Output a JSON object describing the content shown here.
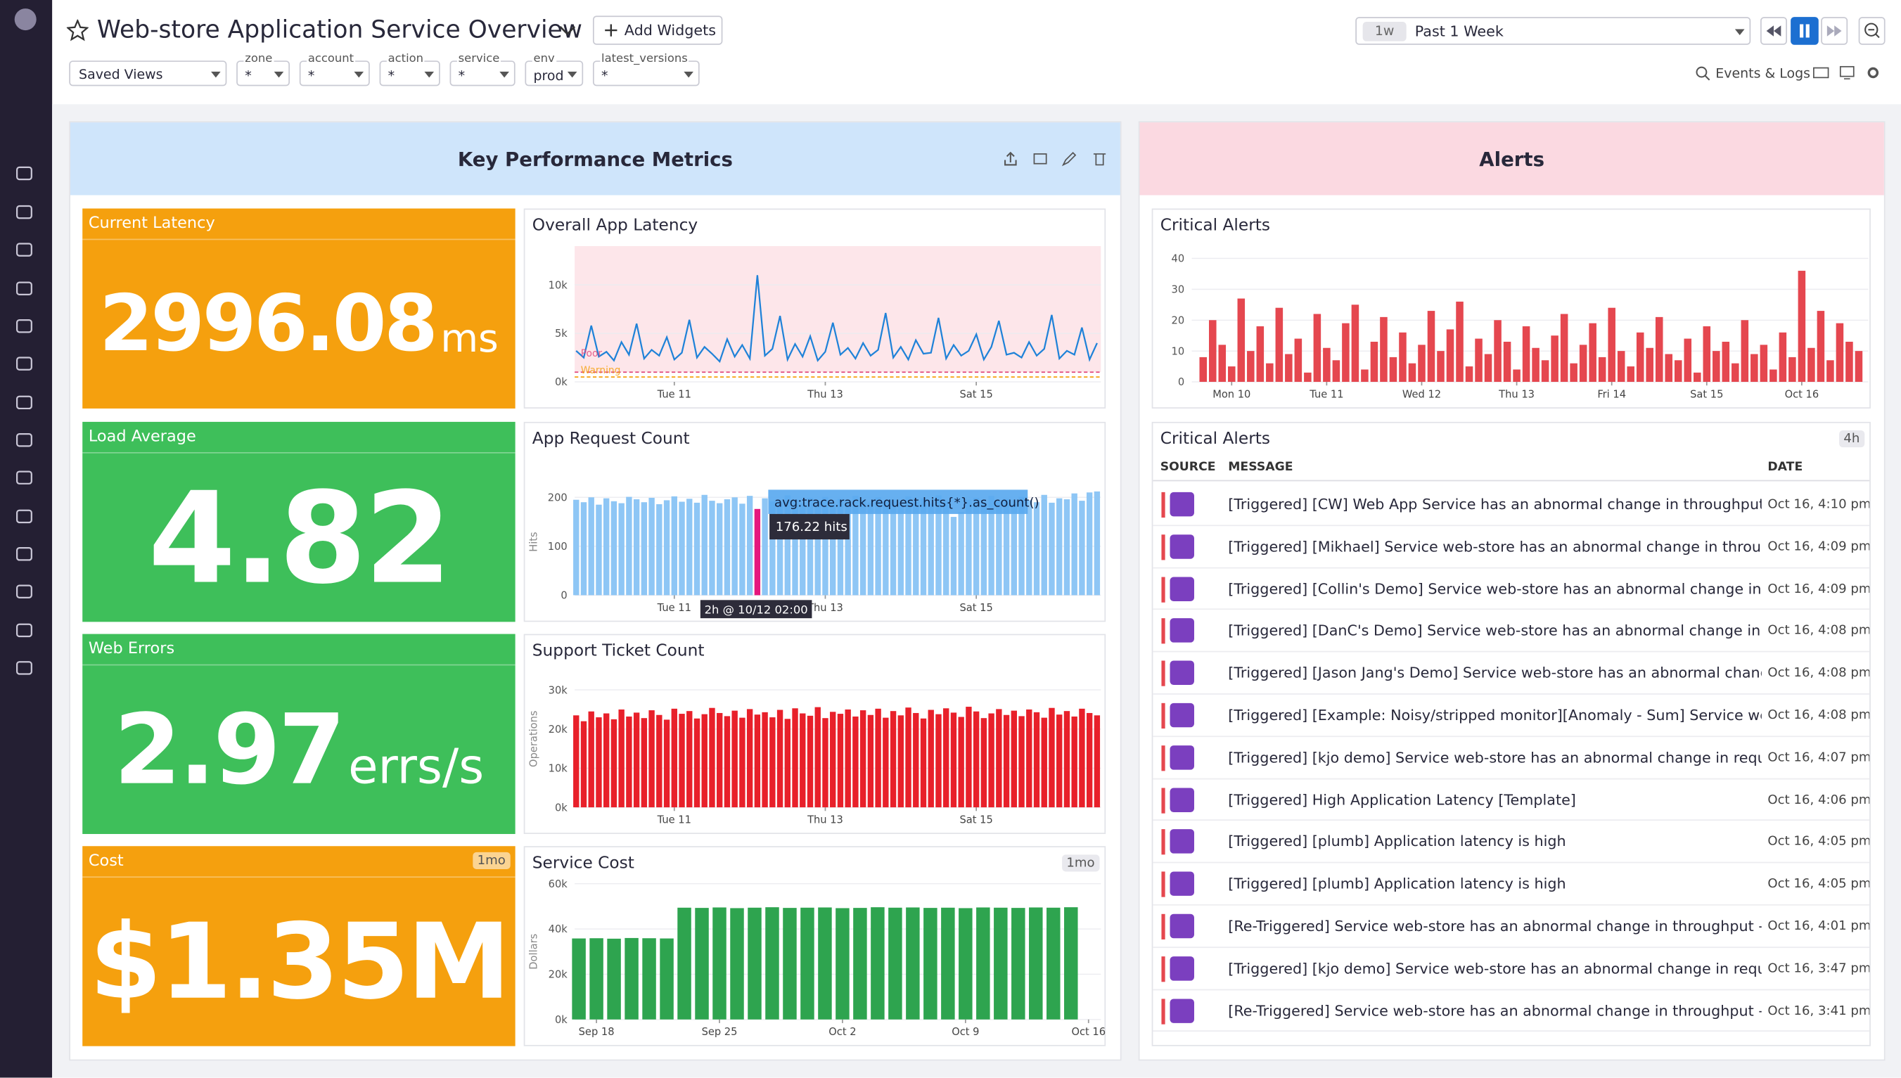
{
  "header": {
    "title": "Web-store Application Service Overview",
    "add_widgets": "Add Widgets",
    "time_shortcut": "1w",
    "time_range": "Past 1 Week",
    "events_logs": "Events & Logs"
  },
  "filters": {
    "saved_views": "Saved Views",
    "variables": [
      {
        "name": "zone",
        "value": "*"
      },
      {
        "name": "account",
        "value": "*"
      },
      {
        "name": "action",
        "value": "*"
      },
      {
        "name": "service",
        "value": "*"
      },
      {
        "name": "env",
        "value": "prod"
      },
      {
        "name": "latest_versions",
        "value": "*"
      }
    ]
  },
  "groups": [
    {
      "title": "Key Performance Metrics"
    },
    {
      "title": "Alerts"
    }
  ],
  "kpis": [
    {
      "title": "Current Latency",
      "value": "2996.08",
      "unit": "ms",
      "color": "#f5a00e"
    },
    {
      "title": "Load Average",
      "value": "4.82",
      "color": "#3ebf5a"
    },
    {
      "title": "Web Errors",
      "value": "2.97",
      "unit": "errs/s",
      "color": "#3ebf5a"
    },
    {
      "title": "Cost",
      "badge": "1mo",
      "value": "$1.35M",
      "color": "#f5a00e"
    }
  ],
  "chart_data": [
    {
      "type": "line",
      "title": "Overall App Latency",
      "xlim": [
        -0.32,
        6.65
      ],
      "ylim": [
        0,
        14000
      ],
      "grid": true,
      "xticks": [
        {
          "value": 1,
          "label": "Tue 11"
        },
        {
          "value": 3,
          "label": "Thu 13"
        },
        {
          "value": 5,
          "label": "Sat 15"
        }
      ],
      "yticks": [
        {
          "value": 0,
          "label": "0k"
        },
        {
          "value": 5000,
          "label": "5k"
        },
        {
          "value": 10000,
          "label": "10k"
        }
      ],
      "markers": [
        {
          "label": "Poor",
          "value": 1000,
          "color": "#e0467c"
        },
        {
          "label": "Warning",
          "value": 500,
          "color": "#f5a00e"
        }
      ],
      "x": [
        -0.3,
        -0.2,
        -0.1,
        0,
        0.1,
        0.2,
        0.3,
        0.4,
        0.5,
        0.6,
        0.7,
        0.8,
        0.9,
        1,
        1.1,
        1.2,
        1.3,
        1.4,
        1.5,
        1.6,
        1.7,
        1.8,
        1.9,
        2,
        2.1,
        2.2,
        2.3,
        2.4,
        2.5,
        2.6,
        2.7,
        2.8,
        2.9,
        3,
        3.1,
        3.2,
        3.3,
        3.4,
        3.5,
        3.6,
        3.7,
        3.8,
        3.9,
        4,
        4.1,
        4.2,
        4.3,
        4.4,
        4.5,
        4.6,
        4.7,
        4.8,
        4.9,
        5,
        5.1,
        5.2,
        5.3,
        5.4,
        5.5,
        5.6,
        5.7,
        5.8,
        5.9,
        6,
        6.1,
        6.2,
        6.3,
        6.4,
        6.5,
        6.6
      ],
      "series": [
        {
          "color": "#1f82d8",
          "values": [
            3200,
            2500,
            5800,
            2600,
            3100,
            2200,
            4100,
            2800,
            6000,
            2400,
            3300,
            2700,
            4600,
            2300,
            3000,
            6400,
            2500,
            3600,
            2900,
            2100,
            4400,
            2600,
            3800,
            2400,
            11000,
            2700,
            3400,
            6800,
            2300,
            3900,
            2600,
            4700,
            2200,
            3100,
            6100,
            2800,
            3500,
            2400,
            4000,
            2700,
            3300,
            7100,
            2500,
            3600,
            2300,
            4300,
            2900,
            3000,
            6600,
            2400,
            3800,
            2700,
            3200,
            4900,
            2300,
            3600,
            6300,
            2800,
            3000,
            2500,
            4100,
            2700,
            3400,
            6900,
            2400,
            3200,
            2800,
            5600,
            2300,
            4000
          ]
        }
      ]
    },
    {
      "type": "bar",
      "title": "App Request Count",
      "ylabel": "Hits",
      "xlim": [
        -0.32,
        6.65
      ],
      "ylim": [
        0,
        218
      ],
      "grid": true,
      "xticks": [
        {
          "value": 1,
          "label": "Tue 11"
        },
        {
          "value": 3,
          "label": "Thu 13"
        },
        {
          "value": 5,
          "label": "Sat 15"
        }
      ],
      "yticks": [
        0,
        100,
        200
      ],
      "highlight": 24,
      "highlight_color": "#e5177d",
      "tooltip": {
        "query": "avg:trace.rack.request.hits{*}.as_count()",
        "value_label": "176.22 hits",
        "time": "2h @ 10/12 02:00"
      },
      "x": [
        -0.3,
        -0.2,
        -0.1,
        0,
        0.1,
        0.2,
        0.3,
        0.4,
        0.5,
        0.6,
        0.7,
        0.8,
        0.9,
        1,
        1.1,
        1.2,
        1.3,
        1.4,
        1.5,
        1.6,
        1.7,
        1.8,
        1.9,
        2,
        2.1,
        2.2,
        2.3,
        2.4,
        2.5,
        2.6,
        2.7,
        2.8,
        2.9,
        3,
        3.1,
        3.2,
        3.3,
        3.4,
        3.5,
        3.6,
        3.7,
        3.8,
        3.9,
        4,
        4.1,
        4.2,
        4.3,
        4.4,
        4.5,
        4.6,
        4.7,
        4.8,
        4.9,
        5,
        5.1,
        5.2,
        5.3,
        5.4,
        5.5,
        5.6,
        5.7,
        5.8,
        5.9,
        6,
        6.1,
        6.2,
        6.3,
        6.4,
        6.5,
        6.6
      ],
      "series": [
        {
          "color": "#8ec6f5",
          "values": [
            195,
            190,
            200,
            185,
            198,
            192,
            188,
            201,
            196,
            190,
            199,
            186,
            194,
            202,
            191,
            197,
            189,
            205,
            193,
            188,
            196,
            200,
            187,
            203,
            176.22,
            198,
            192,
            190,
            204,
            195,
            188,
            199,
            193,
            201,
            186,
            197,
            190,
            203,
            194,
            189,
            200,
            192,
            196,
            185,
            202,
            191,
            198,
            187,
            204,
            193,
            160,
            170,
            195,
            199,
            188,
            203,
            192,
            197,
            186,
            201,
            194,
            190,
            205,
            189,
            198,
            196,
            208,
            193,
            210,
            212
          ]
        }
      ]
    },
    {
      "type": "bar",
      "title": "Support Ticket Count",
      "ylabel": "Operations",
      "xlim": [
        -0.32,
        6.65
      ],
      "ylim": [
        0,
        35000
      ],
      "grid": true,
      "xticks": [
        {
          "value": 1,
          "label": "Tue 11"
        },
        {
          "value": 3,
          "label": "Thu 13"
        },
        {
          "value": 5,
          "label": "Sat 15"
        }
      ],
      "yticks": [
        {
          "value": 0,
          "label": "0k"
        },
        {
          "value": 10000,
          "label": "10k"
        },
        {
          "value": 20000,
          "label": "20k"
        },
        {
          "value": 30000,
          "label": "30k"
        }
      ],
      "x": [
        -0.3,
        -0.2,
        -0.1,
        0,
        0.1,
        0.2,
        0.3,
        0.4,
        0.5,
        0.6,
        0.7,
        0.8,
        0.9,
        1,
        1.1,
        1.2,
        1.3,
        1.4,
        1.5,
        1.6,
        1.7,
        1.8,
        1.9,
        2,
        2.1,
        2.2,
        2.3,
        2.4,
        2.5,
        2.6,
        2.7,
        2.8,
        2.9,
        3,
        3.1,
        3.2,
        3.3,
        3.4,
        3.5,
        3.6,
        3.7,
        3.8,
        3.9,
        4,
        4.1,
        4.2,
        4.3,
        4.4,
        4.5,
        4.6,
        4.7,
        4.8,
        4.9,
        5,
        5.1,
        5.2,
        5.3,
        5.4,
        5.5,
        5.6,
        5.7,
        5.8,
        5.9,
        6,
        6.1,
        6.2,
        6.3,
        6.4,
        6.5,
        6.6
      ],
      "series": [
        {
          "color": "#e8202a",
          "values": [
            23500,
            22000,
            24500,
            23000,
            24000,
            22500,
            25000,
            23200,
            24200,
            22800,
            24800,
            23600,
            22400,
            25200,
            23900,
            24600,
            22700,
            23800,
            25400,
            24100,
            23300,
            24700,
            22900,
            25100,
            23700,
            24300,
            23000,
            24900,
            22600,
            25300,
            24000,
            23400,
            25600,
            22800,
            24400,
            23900,
            25000,
            23200,
            24800,
            23600,
            25200,
            22900,
            24600,
            23500,
            25500,
            24100,
            22700,
            24900,
            23800,
            25300,
            24200,
            23100,
            25700,
            24500,
            22800,
            24000,
            25100,
            23600,
            24700,
            23300,
            25000,
            24300,
            22900,
            25400,
            23700,
            24600,
            23200,
            25200,
            24100,
            23500
          ]
        }
      ]
    },
    {
      "type": "bar",
      "title": "Service Cost",
      "badge": "1mo",
      "ylabel": "Dollars",
      "xlim": [
        -1.24,
        28.7
      ],
      "ylim": [
        0,
        60000
      ],
      "grid": true,
      "xticks": [
        {
          "value": 0,
          "label": "Sep 18"
        },
        {
          "value": 7,
          "label": "Sep 25"
        },
        {
          "value": 14,
          "label": "Oct 2"
        },
        {
          "value": 21,
          "label": "Oct 9"
        },
        {
          "value": 28,
          "label": "Oct 16"
        }
      ],
      "yticks": [
        {
          "value": 0,
          "label": "0k"
        },
        {
          "value": 20000,
          "label": "20k"
        },
        {
          "value": 40000,
          "label": "40k"
        },
        {
          "value": 60000,
          "label": "60k"
        }
      ],
      "x": [
        -1,
        0,
        1,
        2,
        3,
        4,
        5,
        6,
        7,
        8,
        9,
        10,
        11,
        12,
        13,
        14,
        15,
        16,
        17,
        18,
        19,
        20,
        21,
        22,
        23,
        24,
        25,
        26,
        27
      ],
      "series": [
        {
          "color": "#2ea44f",
          "values": [
            35800,
            35900,
            35700,
            36000,
            35900,
            35800,
            49400,
            49300,
            49500,
            49200,
            49400,
            49600,
            49300,
            49400,
            49500,
            49200,
            49300,
            49600,
            49400,
            49500,
            49300,
            49400,
            49200,
            49500,
            49400,
            49300,
            49500,
            49400,
            49600
          ]
        }
      ]
    },
    {
      "type": "bar",
      "title": "Critical Alerts",
      "xlim": [
        -0.42,
        6.7
      ],
      "ylim": [
        0,
        44
      ],
      "grid": true,
      "xticks": [
        {
          "value": 0,
          "label": "Mon 10"
        },
        {
          "value": 1,
          "label": "Tue 11"
        },
        {
          "value": 2,
          "label": "Wed 12"
        },
        {
          "value": 3,
          "label": "Thu 13"
        },
        {
          "value": 4,
          "label": "Fri 14"
        },
        {
          "value": 5,
          "label": "Sat 15"
        },
        {
          "value": 6,
          "label": "Oct 16"
        }
      ],
      "yticks": [
        0,
        10,
        20,
        30,
        40
      ],
      "x": [
        -0.3,
        -0.2,
        -0.1,
        0,
        0.1,
        0.2,
        0.3,
        0.4,
        0.5,
        0.6,
        0.7,
        0.8,
        0.9,
        1,
        1.1,
        1.2,
        1.3,
        1.4,
        1.5,
        1.6,
        1.7,
        1.8,
        1.9,
        2,
        2.1,
        2.2,
        2.3,
        2.4,
        2.5,
        2.6,
        2.7,
        2.8,
        2.9,
        3,
        3.1,
        3.2,
        3.3,
        3.4,
        3.5,
        3.6,
        3.7,
        3.8,
        3.9,
        4,
        4.1,
        4.2,
        4.3,
        4.4,
        4.5,
        4.6,
        4.7,
        4.8,
        4.9,
        5,
        5.1,
        5.2,
        5.3,
        5.4,
        5.5,
        5.6,
        5.7,
        5.8,
        5.9,
        6,
        6.1,
        6.2,
        6.3,
        6.4,
        6.5,
        6.6
      ],
      "series": [
        {
          "color": "#e5474f",
          "values": [
            8,
            20,
            12,
            5,
            27,
            10,
            18,
            6,
            24,
            9,
            14,
            3,
            22,
            11,
            7,
            19,
            25,
            4,
            13,
            21,
            8,
            16,
            6,
            12,
            23,
            10,
            17,
            26,
            5,
            14,
            9,
            20,
            13,
            4,
            18,
            11,
            7,
            15,
            22,
            6,
            12,
            19,
            8,
            24,
            10,
            5,
            16,
            11,
            21,
            9,
            7,
            14,
            3,
            18,
            10,
            13,
            6,
            20,
            9,
            12,
            4,
            16,
            8,
            36,
            11,
            23,
            7,
            19,
            13,
            10
          ]
        }
      ]
    }
  ],
  "alert_list": {
    "title": "Critical Alerts",
    "badge": "4h",
    "columns": [
      "SOURCE",
      "MESSAGE",
      "DATE"
    ],
    "rows": [
      {
        "message": "[Triggered] [CW] Web App Service has an abnormal change in throughput",
        "date": "Oct 16, 4:10 pm"
      },
      {
        "message": "[Triggered] [Mikhael] Service web-store has an abnormal change in throughput...",
        "date": "Oct 16, 4:09 pm"
      },
      {
        "message": "[Triggered] [Collin's Demo] Service web-store has an abnormal change in throu...",
        "date": "Oct 16, 4:09 pm"
      },
      {
        "message": "[Triggered] [DanC's Demo] Service web-store has an abnormal change in throu...",
        "date": "Oct 16, 4:08 pm"
      },
      {
        "message": "[Triggered] [Jason Jang's Demo] Service web-store has an abnormal change in t...",
        "date": "Oct 16, 4:08 pm"
      },
      {
        "message": "[Triggered] [Example: Noisy/stripped monitor][Anomaly - Sum] Service web-sto...",
        "date": "Oct 16, 4:08 pm"
      },
      {
        "message": "[Triggered] [kjo demo] Service web-store has an abnormal change in requests - ...",
        "date": "Oct 16, 4:07 pm"
      },
      {
        "message": "[Triggered] High Application Latency [Template]",
        "date": "Oct 16, 4:06 pm"
      },
      {
        "message": "[Triggered] [plumb] Application latency is high",
        "date": "Oct 16, 4:05 pm"
      },
      {
        "message": "[Triggered] [plumb] Application latency is high",
        "date": "Oct 16, 4:05 pm"
      },
      {
        "message": "[Re-Triggered] Service web-store has an abnormal change in throughput - FSE S...",
        "date": "Oct 16, 4:01 pm"
      },
      {
        "message": "[Triggered] [kjo demo] Service web-store has an abnormal change in requests - ...",
        "date": "Oct 16, 3:47 pm"
      },
      {
        "message": "[Re-Triggered] Service web-store has an abnormal change in throughput - FSE S...",
        "date": "Oct 16, 3:41 pm"
      }
    ]
  }
}
